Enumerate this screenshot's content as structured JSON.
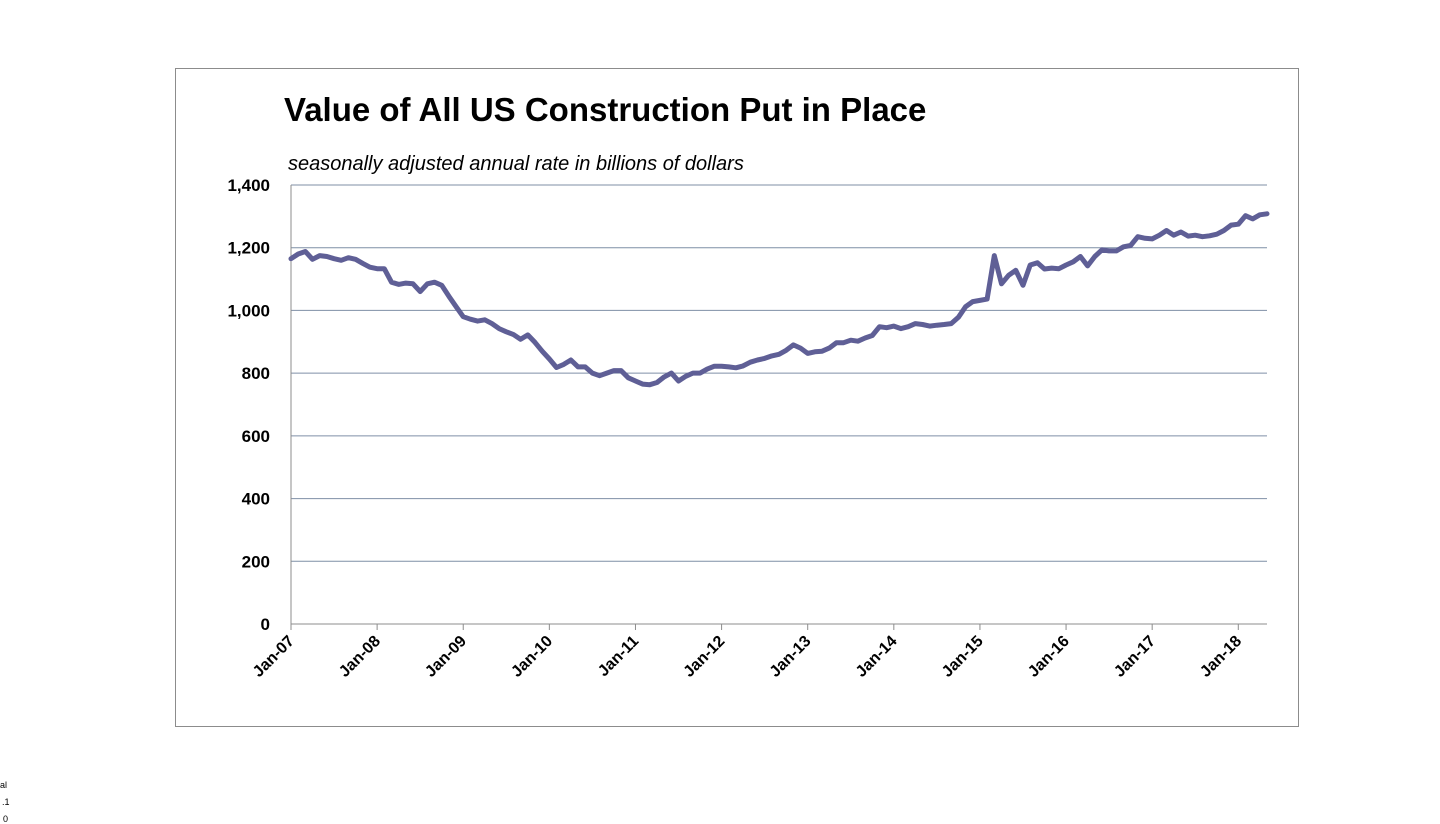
{
  "chart_data": {
    "type": "line",
    "title": "Value of All US Construction Put in Place",
    "subtitle": "seasonally adjusted annual rate in billions of dollars",
    "xlabel": "",
    "ylabel": "",
    "ylim": [
      0,
      1400
    ],
    "yticks": [
      0,
      200,
      400,
      600,
      800,
      1000,
      1200,
      1400
    ],
    "ytick_labels": [
      "0",
      "200",
      "400",
      "600",
      "800",
      "1,000",
      "1,200",
      "1,400"
    ],
    "xticks": [
      0,
      12,
      24,
      36,
      48,
      60,
      72,
      84,
      96,
      108,
      120,
      132
    ],
    "xtick_labels": [
      "Jan-07",
      "Jan-08",
      "Jan-09",
      "Jan-10",
      "Jan-11",
      "Jan-12",
      "Jan-13",
      "Jan-14",
      "Jan-15",
      "Jan-16",
      "Jan-17",
      "Jan-18"
    ],
    "x_range_months": [
      0,
      136
    ],
    "grid": "horizontal",
    "line_color": "#5f5f96",
    "series": [
      {
        "values": [
          1165,
          1180,
          1188,
          1163,
          1175,
          1172,
          1165,
          1160,
          1168,
          1163,
          1150,
          1138,
          1133,
          1133,
          1090,
          1083,
          1087,
          1085,
          1060,
          1085,
          1090,
          1080,
          1045,
          1012,
          980,
          972,
          966,
          970,
          958,
          942,
          932,
          923,
          908,
          922,
          898,
          870,
          845,
          818,
          828,
          842,
          820,
          820,
          800,
          792,
          800,
          808,
          808,
          785,
          775,
          765,
          763,
          770,
          788,
          800,
          775,
          790,
          800,
          800,
          813,
          822,
          822,
          820,
          817,
          823,
          835,
          842,
          847,
          855,
          860,
          873,
          890,
          880,
          863,
          868,
          870,
          880,
          897,
          897,
          905,
          902,
          912,
          920,
          948,
          945,
          950,
          942,
          948,
          958,
          955,
          950,
          953,
          955,
          958,
          978,
          1012,
          1028,
          1032,
          1036,
          1175,
          1085,
          1112,
          1128,
          1080,
          1145,
          1152,
          1132,
          1135,
          1133,
          1145,
          1155,
          1172,
          1142,
          1172,
          1193,
          1190,
          1190,
          1203,
          1207,
          1235,
          1230,
          1228,
          1240,
          1255,
          1240,
          1250,
          1237,
          1240,
          1235,
          1238,
          1243,
          1255,
          1272,
          1275,
          1302,
          1292,
          1305,
          1308
        ]
      }
    ]
  },
  "corner_fragments": [
    "al",
    ".1",
    "0"
  ]
}
